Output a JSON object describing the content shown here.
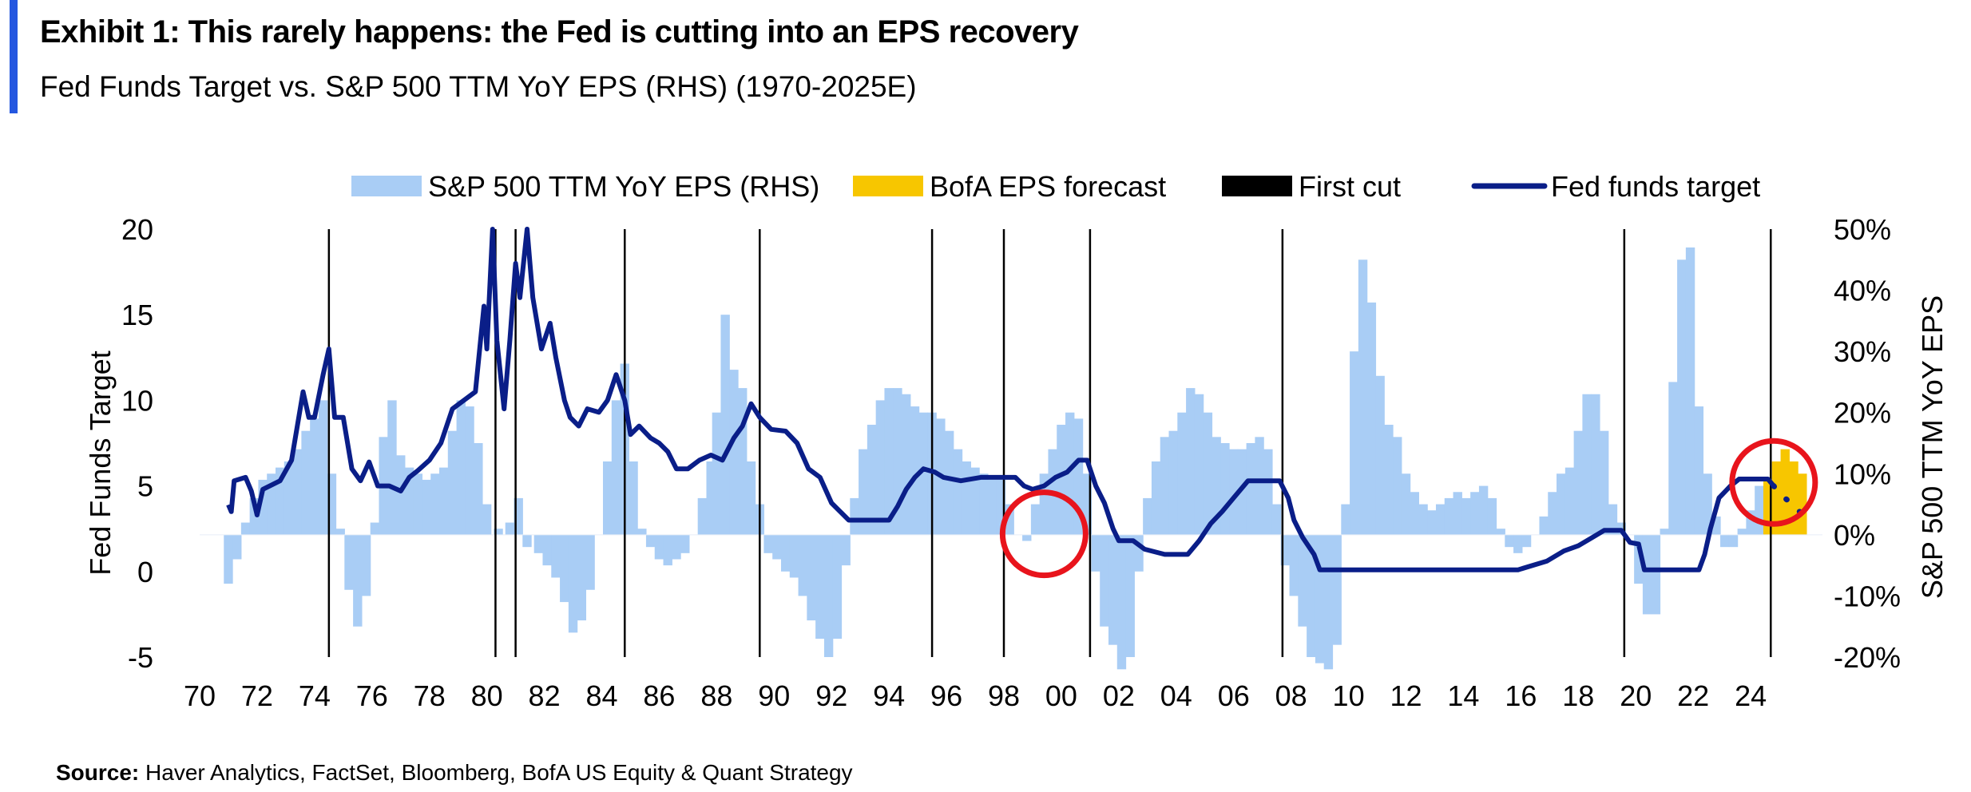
{
  "header": {
    "title": "Exhibit 1: This rarely happens: the Fed is cutting into an EPS recovery",
    "subtitle": "Fed Funds Target vs. S&P 500 TTM YoY EPS (RHS) (1970-2025E)"
  },
  "source": {
    "label": "Source:",
    "text": "Haver Analytics, FactSet, Bloomberg, BofA US Equity & Quant Strategy"
  },
  "colors": {
    "accent": "#2457e0",
    "eps_bar": "#a9cdf5",
    "forecast_bar": "#f7c600",
    "fed_line": "#0a1e88",
    "first_cut": "#000000",
    "highlight": "#e8141c"
  },
  "chart_data": {
    "type": "bar+line",
    "legend_position": "top",
    "legend": [
      {
        "key": "eps",
        "label": "S&P 500 TTM YoY EPS (RHS)"
      },
      {
        "key": "forecast",
        "label": "BofA EPS forecast"
      },
      {
        "key": "first_cut",
        "label": "First cut"
      },
      {
        "key": "fed",
        "label": "Fed funds target"
      }
    ],
    "y_left": {
      "label": "Fed Funds Target",
      "min": -5,
      "max": 20,
      "ticks": [
        "20",
        "15",
        "10",
        "5",
        "0",
        "-5"
      ],
      "tick_values": [
        20,
        15,
        10,
        5,
        0,
        -5
      ]
    },
    "y_right": {
      "label": "S&P 500 TTM YoY EPS",
      "min": -20,
      "max": 50,
      "ticks": [
        "50%",
        "40%",
        "30%",
        "20%",
        "10%",
        "0%",
        "-10%",
        "-20%"
      ],
      "tick_values": [
        50,
        40,
        30,
        20,
        10,
        0,
        -10,
        -20
      ]
    },
    "x_axis": {
      "min": 1970,
      "max": 2026.5,
      "ticks": [
        "70",
        "72",
        "74",
        "76",
        "78",
        "80",
        "82",
        "84",
        "86",
        "88",
        "90",
        "92",
        "94",
        "96",
        "98",
        "00",
        "02",
        "04",
        "06",
        "08",
        "10",
        "12",
        "14",
        "16",
        "18",
        "20",
        "22",
        "24"
      ],
      "tick_values": [
        1970,
        1972,
        1974,
        1976,
        1978,
        1980,
        1982,
        1984,
        1986,
        1988,
        1990,
        1992,
        1994,
        1996,
        1998,
        2000,
        2002,
        2004,
        2006,
        2008,
        2010,
        2012,
        2014,
        2016,
        2018,
        2020,
        2022,
        2024
      ]
    },
    "first_cuts": [
      1974.5,
      1980.3,
      1981.0,
      1984.8,
      1989.5,
      1995.5,
      1998.0,
      2001.0,
      2007.7,
      2019.6,
      2024.7
    ],
    "highlight_circles": [
      {
        "x": 1999.4,
        "y_left": 2.2
      },
      {
        "x": 2024.8,
        "y_left": 5.2
      }
    ],
    "eps_series": {
      "name": "S&P 500 TTM YoY EPS (RHS)",
      "points": [
        [
          1971.0,
          -8
        ],
        [
          1971.3,
          -4
        ],
        [
          1971.6,
          2
        ],
        [
          1971.9,
          6
        ],
        [
          1972.2,
          9
        ],
        [
          1972.5,
          10
        ],
        [
          1972.8,
          11
        ],
        [
          1973.1,
          12
        ],
        [
          1973.4,
          14
        ],
        [
          1973.7,
          17
        ],
        [
          1974.0,
          19
        ],
        [
          1974.3,
          22
        ],
        [
          1974.6,
          10
        ],
        [
          1974.9,
          1
        ],
        [
          1975.2,
          -9
        ],
        [
          1975.5,
          -15
        ],
        [
          1975.8,
          -10
        ],
        [
          1976.1,
          2
        ],
        [
          1976.4,
          16
        ],
        [
          1976.7,
          22
        ],
        [
          1977.0,
          13
        ],
        [
          1977.3,
          11
        ],
        [
          1977.6,
          10
        ],
        [
          1977.9,
          9
        ],
        [
          1978.2,
          10
        ],
        [
          1978.5,
          11
        ],
        [
          1978.8,
          17
        ],
        [
          1979.1,
          22
        ],
        [
          1979.4,
          21
        ],
        [
          1979.7,
          15
        ],
        [
          1980.0,
          5
        ],
        [
          1980.4,
          1
        ],
        [
          1980.8,
          2
        ],
        [
          1981.1,
          6
        ],
        [
          1981.4,
          -2
        ],
        [
          1981.8,
          -3
        ],
        [
          1982.1,
          -5
        ],
        [
          1982.4,
          -7
        ],
        [
          1982.7,
          -11
        ],
        [
          1983.0,
          -16
        ],
        [
          1983.3,
          -14
        ],
        [
          1983.6,
          -9
        ],
        [
          1983.9,
          0
        ],
        [
          1984.2,
          12
        ],
        [
          1984.5,
          22
        ],
        [
          1984.8,
          28
        ],
        [
          1985.1,
          12
        ],
        [
          1985.4,
          1
        ],
        [
          1985.7,
          -2
        ],
        [
          1986.0,
          -4
        ],
        [
          1986.3,
          -5
        ],
        [
          1986.6,
          -4
        ],
        [
          1986.9,
          -3
        ],
        [
          1987.2,
          0
        ],
        [
          1987.5,
          6
        ],
        [
          1987.8,
          12
        ],
        [
          1988.0,
          20
        ],
        [
          1988.3,
          36
        ],
        [
          1988.6,
          27
        ],
        [
          1988.9,
          24
        ],
        [
          1989.2,
          12
        ],
        [
          1989.5,
          5
        ],
        [
          1989.8,
          -3
        ],
        [
          1990.1,
          -4
        ],
        [
          1990.4,
          -6
        ],
        [
          1990.7,
          -7
        ],
        [
          1991.0,
          -10
        ],
        [
          1991.3,
          -14
        ],
        [
          1991.6,
          -17
        ],
        [
          1991.9,
          -20
        ],
        [
          1992.2,
          -17
        ],
        [
          1992.5,
          -5
        ],
        [
          1992.8,
          6
        ],
        [
          1993.1,
          14
        ],
        [
          1993.4,
          18
        ],
        [
          1993.7,
          22
        ],
        [
          1994.0,
          24
        ],
        [
          1994.3,
          24
        ],
        [
          1994.6,
          23
        ],
        [
          1994.9,
          21
        ],
        [
          1995.2,
          20
        ],
        [
          1995.5,
          20
        ],
        [
          1995.8,
          19
        ],
        [
          1996.1,
          17
        ],
        [
          1996.4,
          14
        ],
        [
          1996.7,
          12
        ],
        [
          1997.0,
          11
        ],
        [
          1997.3,
          10
        ],
        [
          1997.6,
          9
        ],
        [
          1997.9,
          9
        ],
        [
          1998.2,
          5
        ],
        [
          1998.5,
          0
        ],
        [
          1998.8,
          -1
        ],
        [
          1999.1,
          5
        ],
        [
          1999.4,
          10
        ],
        [
          1999.7,
          14
        ],
        [
          2000.0,
          18
        ],
        [
          2000.3,
          20
        ],
        [
          2000.6,
          19
        ],
        [
          2000.9,
          10
        ],
        [
          2001.2,
          -6
        ],
        [
          2001.5,
          -15
        ],
        [
          2001.8,
          -18
        ],
        [
          2002.1,
          -22
        ],
        [
          2002.4,
          -20
        ],
        [
          2002.7,
          -6
        ],
        [
          2003.0,
          6
        ],
        [
          2003.3,
          12
        ],
        [
          2003.6,
          16
        ],
        [
          2003.9,
          17
        ],
        [
          2004.2,
          20
        ],
        [
          2004.5,
          24
        ],
        [
          2004.8,
          23
        ],
        [
          2005.1,
          20
        ],
        [
          2005.4,
          16
        ],
        [
          2005.7,
          15
        ],
        [
          2006.0,
          14
        ],
        [
          2006.3,
          14
        ],
        [
          2006.6,
          15
        ],
        [
          2006.9,
          16
        ],
        [
          2007.2,
          14
        ],
        [
          2007.5,
          5
        ],
        [
          2007.8,
          -5
        ],
        [
          2008.1,
          -10
        ],
        [
          2008.4,
          -15
        ],
        [
          2008.7,
          -20
        ],
        [
          2009.0,
          -21
        ],
        [
          2009.3,
          -22
        ],
        [
          2009.6,
          -18
        ],
        [
          2009.9,
          5
        ],
        [
          2010.2,
          30
        ],
        [
          2010.5,
          45
        ],
        [
          2010.8,
          38
        ],
        [
          2011.1,
          26
        ],
        [
          2011.4,
          18
        ],
        [
          2011.7,
          16
        ],
        [
          2012.0,
          10
        ],
        [
          2012.3,
          7
        ],
        [
          2012.6,
          5
        ],
        [
          2012.9,
          4
        ],
        [
          2013.2,
          5
        ],
        [
          2013.5,
          6
        ],
        [
          2013.8,
          7
        ],
        [
          2014.1,
          6
        ],
        [
          2014.4,
          7
        ],
        [
          2014.7,
          8
        ],
        [
          2015.0,
          6
        ],
        [
          2015.3,
          1
        ],
        [
          2015.6,
          -2
        ],
        [
          2015.9,
          -3
        ],
        [
          2016.2,
          -2
        ],
        [
          2016.5,
          0
        ],
        [
          2016.8,
          3
        ],
        [
          2017.1,
          7
        ],
        [
          2017.4,
          10
        ],
        [
          2017.7,
          11
        ],
        [
          2018.0,
          17
        ],
        [
          2018.3,
          23
        ],
        [
          2018.6,
          23
        ],
        [
          2018.9,
          17
        ],
        [
          2019.2,
          5
        ],
        [
          2019.5,
          2
        ],
        [
          2019.8,
          0
        ],
        [
          2020.1,
          -8
        ],
        [
          2020.4,
          -13
        ],
        [
          2020.7,
          -13
        ],
        [
          2021.0,
          1
        ],
        [
          2021.3,
          25
        ],
        [
          2021.6,
          45
        ],
        [
          2021.9,
          47
        ],
        [
          2022.2,
          21
        ],
        [
          2022.5,
          10
        ],
        [
          2022.8,
          3
        ],
        [
          2023.1,
          -2
        ],
        [
          2023.4,
          -2
        ],
        [
          2023.7,
          1
        ],
        [
          2024.0,
          4
        ],
        [
          2024.3,
          8
        ]
      ]
    },
    "forecast_series": {
      "name": "BofA EPS forecast",
      "points": [
        [
          2024.6,
          9
        ],
        [
          2024.9,
          12
        ],
        [
          2025.2,
          14
        ],
        [
          2025.5,
          12
        ],
        [
          2025.8,
          10
        ]
      ]
    },
    "fed_series": {
      "name": "Fed funds target",
      "points": [
        [
          1971.0,
          3.9
        ],
        [
          1971.1,
          3.5
        ],
        [
          1971.2,
          5.3
        ],
        [
          1971.6,
          5.5
        ],
        [
          1971.8,
          4.7
        ],
        [
          1972.0,
          3.3
        ],
        [
          1972.2,
          4.8
        ],
        [
          1972.8,
          5.3
        ],
        [
          1973.2,
          6.5
        ],
        [
          1973.6,
          10.5
        ],
        [
          1973.8,
          9.0
        ],
        [
          1974.0,
          9.0
        ],
        [
          1974.3,
          11.5
        ],
        [
          1974.5,
          13.0
        ],
        [
          1974.7,
          9.0
        ],
        [
          1975.0,
          9.0
        ],
        [
          1975.3,
          6.0
        ],
        [
          1975.6,
          5.3
        ],
        [
          1975.9,
          6.4
        ],
        [
          1976.2,
          5.0
        ],
        [
          1976.6,
          5.0
        ],
        [
          1977.0,
          4.7
        ],
        [
          1977.3,
          5.5
        ],
        [
          1977.6,
          5.9
        ],
        [
          1978.0,
          6.5
        ],
        [
          1978.4,
          7.5
        ],
        [
          1978.8,
          9.5
        ],
        [
          1979.2,
          10.0
        ],
        [
          1979.6,
          10.5
        ],
        [
          1979.9,
          15.5
        ],
        [
          1980.0,
          13.0
        ],
        [
          1980.2,
          20.0
        ],
        [
          1980.35,
          13.5
        ],
        [
          1980.6,
          9.5
        ],
        [
          1980.8,
          13.5
        ],
        [
          1981.0,
          18.0
        ],
        [
          1981.15,
          16.0
        ],
        [
          1981.4,
          20.0
        ],
        [
          1981.6,
          16.0
        ],
        [
          1981.9,
          13.0
        ],
        [
          1982.2,
          14.5
        ],
        [
          1982.4,
          12.5
        ],
        [
          1982.7,
          10.0
        ],
        [
          1982.9,
          9.0
        ],
        [
          1983.2,
          8.5
        ],
        [
          1983.5,
          9.5
        ],
        [
          1983.9,
          9.3
        ],
        [
          1984.2,
          10.0
        ],
        [
          1984.5,
          11.5
        ],
        [
          1984.8,
          10.0
        ],
        [
          1985.0,
          8.0
        ],
        [
          1985.3,
          8.5
        ],
        [
          1985.7,
          7.8
        ],
        [
          1986.0,
          7.5
        ],
        [
          1986.3,
          7.0
        ],
        [
          1986.6,
          6.0
        ],
        [
          1987.0,
          6.0
        ],
        [
          1987.4,
          6.5
        ],
        [
          1987.8,
          6.8
        ],
        [
          1988.2,
          6.5
        ],
        [
          1988.6,
          7.8
        ],
        [
          1988.9,
          8.5
        ],
        [
          1989.2,
          9.8
        ],
        [
          1989.5,
          9.0
        ],
        [
          1989.9,
          8.3
        ],
        [
          1990.4,
          8.2
        ],
        [
          1990.8,
          7.5
        ],
        [
          1991.2,
          6.0
        ],
        [
          1991.6,
          5.5
        ],
        [
          1992.0,
          4.0
        ],
        [
          1992.3,
          3.5
        ],
        [
          1992.6,
          3.0
        ],
        [
          1993.5,
          3.0
        ],
        [
          1994.0,
          3.0
        ],
        [
          1994.3,
          3.8
        ],
        [
          1994.6,
          4.8
        ],
        [
          1994.9,
          5.5
        ],
        [
          1995.2,
          6.0
        ],
        [
          1995.6,
          5.8
        ],
        [
          1995.9,
          5.5
        ],
        [
          1996.5,
          5.3
        ],
        [
          1997.2,
          5.5
        ],
        [
          1997.9,
          5.5
        ],
        [
          1998.4,
          5.5
        ],
        [
          1998.7,
          5.0
        ],
        [
          1999.0,
          4.8
        ],
        [
          1999.4,
          5.0
        ],
        [
          1999.8,
          5.5
        ],
        [
          2000.2,
          5.8
        ],
        [
          2000.6,
          6.5
        ],
        [
          2000.9,
          6.5
        ],
        [
          2001.2,
          5.0
        ],
        [
          2001.5,
          4.0
        ],
        [
          2001.8,
          2.5
        ],
        [
          2002.0,
          1.8
        ],
        [
          2002.5,
          1.8
        ],
        [
          2002.9,
          1.3
        ],
        [
          2003.6,
          1.0
        ],
        [
          2004.4,
          1.0
        ],
        [
          2004.8,
          1.8
        ],
        [
          2005.2,
          2.8
        ],
        [
          2005.6,
          3.5
        ],
        [
          2006.0,
          4.3
        ],
        [
          2006.5,
          5.3
        ],
        [
          2007.6,
          5.3
        ],
        [
          2007.9,
          4.3
        ],
        [
          2008.1,
          3.0
        ],
        [
          2008.4,
          2.0
        ],
        [
          2008.8,
          1.0
        ],
        [
          2009.0,
          0.1
        ],
        [
          2015.9,
          0.1
        ],
        [
          2016.9,
          0.6
        ],
        [
          2017.5,
          1.2
        ],
        [
          2018.0,
          1.5
        ],
        [
          2018.5,
          2.0
        ],
        [
          2018.9,
          2.4
        ],
        [
          2019.5,
          2.4
        ],
        [
          2019.8,
          1.7
        ],
        [
          2020.1,
          1.6
        ],
        [
          2020.3,
          0.1
        ],
        [
          2022.2,
          0.1
        ],
        [
          2022.4,
          1.0
        ],
        [
          2022.6,
          2.5
        ],
        [
          2022.9,
          4.3
        ],
        [
          2023.3,
          5.0
        ],
        [
          2023.6,
          5.4
        ],
        [
          2024.6,
          5.4
        ],
        [
          2024.8,
          5.0
        ]
      ]
    },
    "fed_projection": {
      "name": "Fed funds target (projected)",
      "points": [
        [
          2024.8,
          5.0
        ],
        [
          2025.1,
          4.4
        ],
        [
          2025.5,
          3.9
        ],
        [
          2025.9,
          3.1
        ]
      ]
    }
  }
}
